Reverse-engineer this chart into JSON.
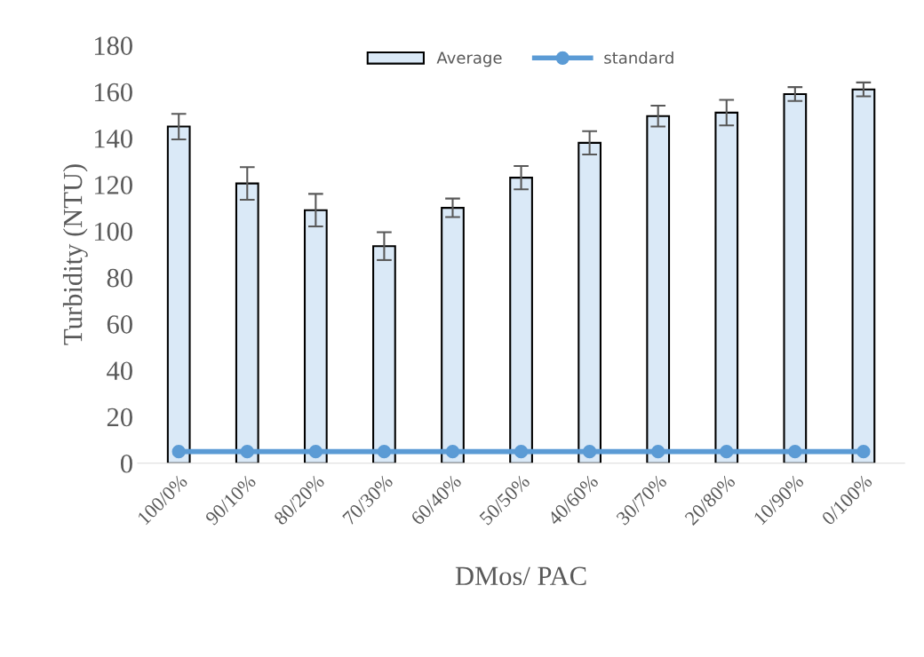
{
  "chart_data": {
    "type": "bar",
    "xlabel": "DMos/ PAC",
    "ylabel": "Turbidity (NTU)",
    "categories": [
      "100/0%",
      "90/10%",
      "80/20%",
      "70/30%",
      "60/40%",
      "50/50%",
      "40/60%",
      "30/70%",
      "20/80%",
      "10/90%",
      "0/100%"
    ],
    "series": [
      {
        "name": "Average",
        "color": "#dae9f7",
        "values": [
          145,
          120.5,
          109,
          93.5,
          110,
          123,
          138,
          149.5,
          151,
          159,
          161
        ],
        "errors": [
          5.5,
          7,
          7,
          6,
          4,
          5,
          5,
          4.5,
          5.5,
          3,
          3
        ]
      },
      {
        "name": "standard",
        "type": "line",
        "color": "#5b9bd5",
        "marker": "circle",
        "values": [
          5,
          5,
          5,
          5,
          5,
          5,
          5,
          5,
          5,
          5,
          5
        ]
      }
    ],
    "ylim": [
      0,
      180
    ],
    "yticks": [
      0,
      20,
      40,
      60,
      80,
      100,
      120,
      140,
      160,
      180
    ],
    "grid": false,
    "legend": "top"
  }
}
